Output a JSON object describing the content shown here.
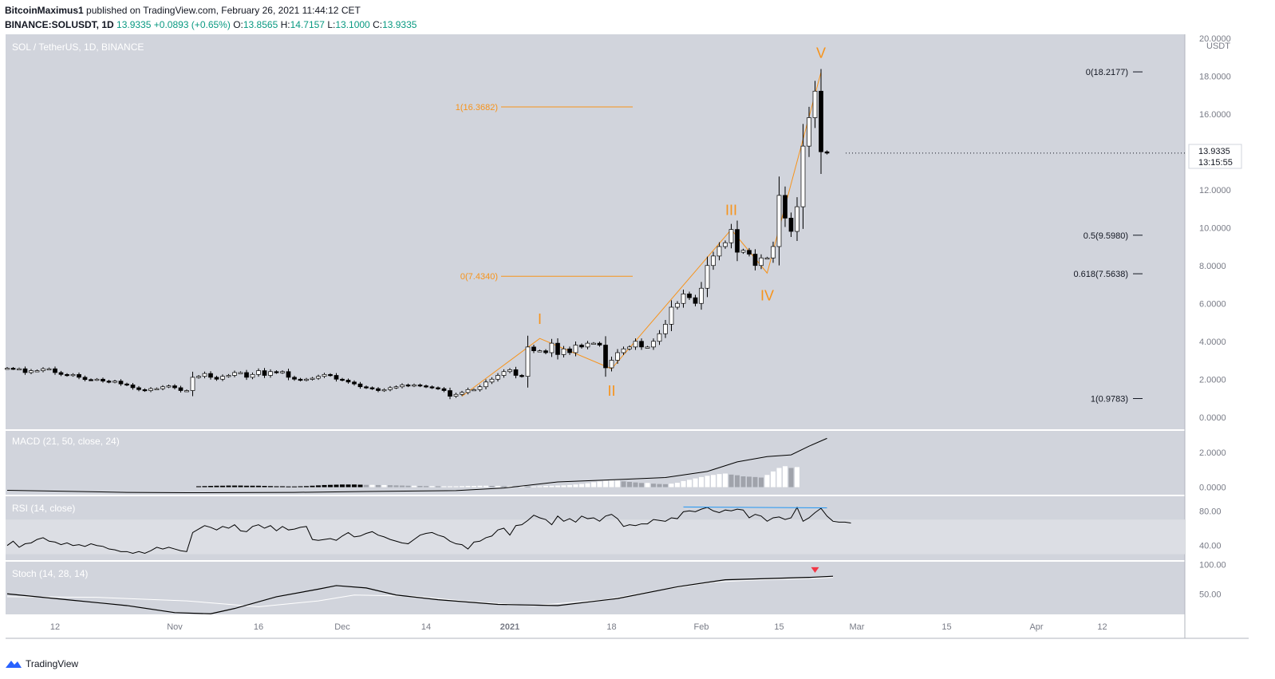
{
  "header": {
    "author": "BitcoinMaximus1",
    "published": "published on TradingView.com, February 26, 2021 11:44:12 CET",
    "symbol": "BINANCE:SOLUSDT, 1D",
    "last": "13.9335",
    "change": "+0.0893 (+0.65%)",
    "o_label": "O:",
    "open": "13.8565",
    "h_label": "H:",
    "high": "14.7157",
    "l_label": "L:",
    "low": "13.1000",
    "c_label": "C:",
    "close": "13.9335"
  },
  "footer": {
    "brand": "TradingView"
  },
  "colors": {
    "pane_bg": "#d1d4dc",
    "orange": "#f7931a",
    "blue": "#2196f3",
    "red": "#f23645",
    "up": "#ffffff",
    "down": "#000000"
  },
  "chart_data": {
    "type": "candlestick",
    "title": "SOL / TetherUS, 1D, BINANCE",
    "currency": "USDT",
    "last_price": "13.9335",
    "countdown": "13:15:55",
    "y_ticks": [
      "20.0000",
      "18.0000",
      "16.0000",
      "14.0000",
      "12.0000",
      "10.0000",
      "8.0000",
      "6.0000",
      "4.0000",
      "2.0000",
      "0.0000"
    ],
    "y_tick_values": [
      20,
      18,
      16,
      14,
      12,
      10,
      8,
      6,
      4,
      2,
      0
    ],
    "ylim": [
      -0.6,
      20.2
    ],
    "x_ticks": [
      "12",
      "Nov",
      "16",
      "Dec",
      "14",
      "2021",
      "18",
      "Feb",
      "15",
      "Mar",
      "15",
      "Apr",
      "12"
    ],
    "closes": [
      2.58,
      2.55,
      2.55,
      2.35,
      2.45,
      2.45,
      2.55,
      2.55,
      2.35,
      2.25,
      2.2,
      2.25,
      2.1,
      1.98,
      1.97,
      2.0,
      1.9,
      1.85,
      1.9,
      1.75,
      1.7,
      1.55,
      1.45,
      1.4,
      1.5,
      1.5,
      1.6,
      1.65,
      1.55,
      1.4,
      1.4,
      2.1,
      2.15,
      2.3,
      2.1,
      2.0,
      2.15,
      2.2,
      2.35,
      2.35,
      2.1,
      2.25,
      2.45,
      2.2,
      2.4,
      2.35,
      2.4,
      2.1,
      2.0,
      1.95,
      2.0,
      2.05,
      2.15,
      2.25,
      2.2,
      2.0,
      1.95,
      1.85,
      1.75,
      1.6,
      1.55,
      1.5,
      1.4,
      1.45,
      1.55,
      1.6,
      1.7,
      1.65,
      1.7,
      1.65,
      1.6,
      1.55,
      1.5,
      1.4,
      1.1,
      1.2,
      1.3,
      1.45,
      1.45,
      1.6,
      1.85,
      2.0,
      2.2,
      2.4,
      2.5,
      2.2,
      2.15,
      3.7,
      3.5,
      3.5,
      3.4,
      3.9,
      3.3,
      3.6,
      3.4,
      3.8,
      3.7,
      3.9,
      3.9,
      3.8,
      2.6,
      3.0,
      3.4,
      3.6,
      3.7,
      4.0,
      3.7,
      3.7,
      4.0,
      4.4,
      4.9,
      5.8,
      6.0,
      6.5,
      6.3,
      6.0,
      6.8,
      8.0,
      8.5,
      9.0,
      9.2,
      9.9,
      8.7,
      8.8,
      8.6,
      8.0,
      8.4,
      8.4,
      9.0,
      11.7,
      10.5,
      9.8,
      11.1,
      14.3,
      15.8,
      17.2,
      14.0,
      13.93
    ],
    "fib_left": [
      {
        "label": "1(16.3682)",
        "value": 16.3682
      },
      {
        "label": "0(7.4340)",
        "value": 7.434
      }
    ],
    "fib_right": [
      {
        "label": "0(18.2177)",
        "value": 18.2177
      },
      {
        "label": "0.5(9.5980)",
        "value": 9.598
      },
      {
        "label": "0.618(7.5638)",
        "value": 7.5638
      },
      {
        "label": "1(0.9783)",
        "value": 0.9783
      }
    ],
    "waves": [
      {
        "label": "I",
        "index": 89,
        "value": 4.15
      },
      {
        "label": "II",
        "index": 101,
        "value": 2.55
      },
      {
        "label": "III",
        "index": 121,
        "value": 9.9
      },
      {
        "label": "IV",
        "index": 127,
        "value": 7.6
      },
      {
        "label": "V",
        "index": 136,
        "value": 18.2
      }
    ],
    "macd": {
      "label": "MACD (21, 50, close, 24)",
      "ticks": [
        "2.0000",
        "0.0000"
      ],
      "tick_values": [
        2,
        0
      ],
      "ylim": [
        -0.25,
        3.0
      ],
      "line": [
        [
          0,
          -0.18
        ],
        [
          20,
          -0.3
        ],
        [
          30,
          -0.32
        ],
        [
          48,
          -0.3
        ],
        [
          60,
          -0.25
        ],
        [
          75,
          -0.2
        ],
        [
          83,
          -0.05
        ],
        [
          92,
          0.3
        ],
        [
          103,
          0.45
        ],
        [
          110,
          0.55
        ],
        [
          117,
          0.9
        ],
        [
          122,
          1.45
        ],
        [
          127,
          1.75
        ],
        [
          131,
          1.85
        ],
        [
          134,
          2.35
        ],
        [
          137,
          2.8
        ]
      ],
      "hist_values": [
        0.05,
        0.06,
        0.07,
        0.08,
        0.08,
        0.09,
        0.09,
        0.09,
        0.08,
        0.08,
        0.08,
        0.07,
        0.06,
        0.05,
        0.05,
        0.04,
        0.04,
        0.05,
        0.06,
        0.08,
        0.1,
        0.12,
        0.13,
        0.14,
        0.15,
        0.15,
        0.15,
        0.14,
        0.13,
        0.13,
        0.12,
        0.12,
        0.11,
        0.1,
        0.09,
        0.08,
        0.08,
        0.07,
        0.06,
        0.06,
        0.05,
        0.05,
        0.05,
        0.05,
        0.06,
        0.07,
        0.07,
        0.08,
        0.08,
        0.07,
        0.07,
        0.06,
        0.06,
        0.05,
        0.05,
        0.04,
        0.04,
        0.05,
        0.07,
        0.08,
        0.09,
        0.1,
        0.12,
        0.15,
        0.18,
        0.22,
        0.28,
        0.33,
        0.36,
        0.38,
        0.38,
        0.33,
        0.3,
        0.27,
        0.24,
        0.24,
        0.2,
        0.18,
        0.17,
        0.2,
        0.25,
        0.35,
        0.42,
        0.5,
        0.58,
        0.65,
        0.7,
        0.75,
        0.78,
        0.72,
        0.68,
        0.62,
        0.6,
        0.58,
        0.55,
        0.7,
        0.9,
        1.1,
        1.2,
        1.1,
        1.15
      ],
      "hist_start": 32
    },
    "rsi": {
      "label": "RSI (14, close)",
      "ticks": [
        "80.00",
        "40.00"
      ],
      "tick_values": [
        80,
        40
      ],
      "band": [
        70,
        30
      ],
      "ylim": [
        25,
        95
      ],
      "values": [
        40,
        45,
        38,
        42,
        43,
        47,
        49,
        45,
        44,
        41,
        43,
        40,
        41,
        39,
        42,
        40,
        39,
        36,
        35,
        33,
        33,
        31,
        33,
        31,
        34,
        38,
        36,
        38,
        36,
        34,
        33,
        55,
        59,
        63,
        61,
        58,
        62,
        60,
        64,
        57,
        56,
        62,
        64,
        60,
        63,
        57,
        62,
        58,
        59,
        61,
        62,
        47,
        46,
        47,
        48,
        46,
        51,
        55,
        50,
        51,
        54,
        56,
        52,
        50,
        47,
        45,
        43,
        42,
        47,
        52,
        54,
        55,
        52,
        50,
        45,
        42,
        41,
        36,
        44,
        45,
        49,
        51,
        58,
        60,
        52,
        63,
        64,
        69,
        75,
        72,
        70,
        64,
        74,
        68,
        71,
        67,
        74,
        71,
        72,
        68,
        74,
        76,
        71,
        62,
        64,
        63,
        65,
        65,
        70,
        69,
        68,
        72,
        71,
        79,
        80,
        79,
        82,
        84,
        80,
        78,
        81,
        80,
        82,
        81,
        72,
        76,
        74,
        68,
        72,
        73,
        70,
        72,
        84,
        68,
        72,
        78,
        83,
        74,
        68,
        67,
        67,
        66
      ],
      "blue_line": [
        [
          113,
          84.5
        ],
        [
          137,
          83.5
        ]
      ]
    },
    "stoch": {
      "label": "Stoch (14, 28, 14)",
      "ticks": [
        "100.00",
        "50.00"
      ],
      "tick_values": [
        100,
        50
      ],
      "ylim": [
        15,
        102
      ],
      "k": [
        [
          0,
          50
        ],
        [
          10,
          40
        ],
        [
          20,
          30
        ],
        [
          28,
          18
        ],
        [
          34,
          16
        ],
        [
          38,
          25
        ],
        [
          45,
          45
        ],
        [
          52,
          58
        ],
        [
          55,
          64
        ],
        [
          60,
          60
        ],
        [
          65,
          48
        ],
        [
          72,
          40
        ],
        [
          82,
          32
        ],
        [
          92,
          30
        ],
        [
          102,
          42
        ],
        [
          112,
          62
        ],
        [
          120,
          74
        ],
        [
          127,
          76
        ],
        [
          134,
          78
        ],
        [
          138,
          80
        ]
      ],
      "d": [
        [
          0,
          45
        ],
        [
          15,
          44
        ],
        [
          30,
          38
        ],
        [
          42,
          28
        ],
        [
          52,
          38
        ],
        [
          58,
          48
        ],
        [
          68,
          46
        ],
        [
          78,
          36
        ],
        [
          88,
          30
        ],
        [
          100,
          40
        ],
        [
          110,
          58
        ],
        [
          118,
          70
        ],
        [
          126,
          74
        ],
        [
          134,
          76
        ],
        [
          138,
          78
        ]
      ],
      "marker_index": 135
    }
  }
}
